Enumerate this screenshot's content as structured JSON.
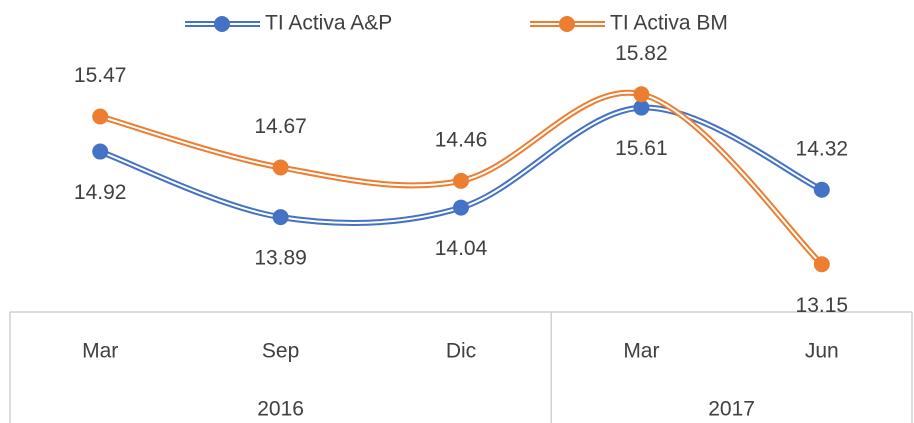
{
  "chart_data": {
    "type": "line",
    "categories": [
      "Mar",
      "Sep",
      "Dic",
      "Mar",
      "Jun"
    ],
    "groups": [
      {
        "name": "2016",
        "span": 3
      },
      {
        "name": "2017",
        "span": 2
      }
    ],
    "series": [
      {
        "name": "TI Activa A&P",
        "color": "#4472c4",
        "values": [
          14.92,
          13.89,
          14.04,
          15.61,
          14.32
        ]
      },
      {
        "name": "TI Activa BM",
        "color": "#ed7d31",
        "values": [
          15.47,
          14.67,
          14.46,
          15.82,
          13.15
        ]
      }
    ],
    "ylim": [
      12.4,
      17.3
    ],
    "legend": "top"
  }
}
